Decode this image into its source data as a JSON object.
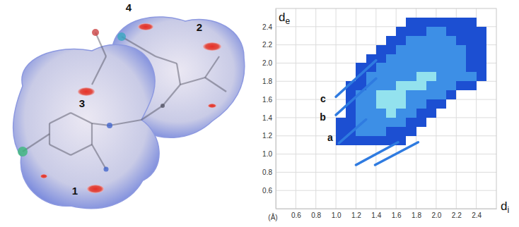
{
  "chart_data": {
    "type": "heatmap",
    "x_label": "di",
    "y_label": "de",
    "xlim": [
      0.4,
      2.6
    ],
    "ylim": [
      0.4,
      2.6
    ],
    "xticks": [
      0.6,
      0.8,
      {
        "value": 1,
        "label": "1.0"
      },
      1.2,
      1.4,
      1.6,
      1.8,
      {
        "value": 2,
        "label": "2.0"
      },
      2.2,
      2.4
    ],
    "yticks": [
      0.6,
      0.8,
      {
        "value": 1,
        "label": "1.0"
      },
      1.2,
      1.4,
      1.6,
      1.8,
      {
        "value": 2,
        "label": "2.0"
      },
      2.2,
      2.4
    ],
    "grid": true,
    "cell_size": 0.1,
    "clim": [
      1,
      3
    ],
    "cells": [
      {
        "y": 2.4,
        "x": [
          1.7,
          1.8,
          1.9,
          2.0,
          2.1,
          2.2,
          2.3
        ],
        "levels": [
          1,
          1,
          1,
          1,
          1,
          1,
          1
        ]
      },
      {
        "y": 2.3,
        "x": [
          1.6,
          1.7,
          1.8,
          1.9,
          2.0,
          2.1,
          2.2,
          2.3,
          2.4
        ],
        "levels": [
          1,
          1,
          1,
          2,
          2,
          1,
          1,
          1,
          1
        ]
      },
      {
        "y": 2.2,
        "x": [
          1.5,
          1.6,
          1.7,
          1.8,
          1.9,
          2.0,
          2.1,
          2.2,
          2.3,
          2.4
        ],
        "levels": [
          1,
          1,
          2,
          2,
          2,
          2,
          2,
          1,
          1,
          1
        ]
      },
      {
        "y": 2.1,
        "x": [
          1.4,
          1.5,
          1.6,
          1.7,
          1.8,
          1.9,
          2.0,
          2.1,
          2.2,
          2.3,
          2.4
        ],
        "levels": [
          1,
          1,
          2,
          2,
          2,
          2,
          2,
          2,
          2,
          1,
          1
        ]
      },
      {
        "y": 2.0,
        "x": [
          1.3,
          1.4,
          1.5,
          1.6,
          1.7,
          1.8,
          1.9,
          2.0,
          2.1,
          2.2,
          2.3,
          2.4
        ],
        "levels": [
          1,
          1,
          2,
          2,
          2,
          2,
          2,
          2,
          2,
          2,
          1,
          1
        ]
      },
      {
        "y": 1.9,
        "x": [
          1.2,
          1.3,
          1.4,
          1.5,
          1.6,
          1.7,
          1.8,
          1.9,
          2.0,
          2.1,
          2.2,
          2.3,
          2.4
        ],
        "levels": [
          1,
          1,
          2,
          2,
          2,
          2,
          2,
          2,
          2,
          2,
          2,
          1,
          1
        ]
      },
      {
        "y": 1.8,
        "x": [
          1.2,
          1.3,
          1.4,
          1.5,
          1.6,
          1.7,
          1.8,
          1.9,
          2.0,
          2.1,
          2.2,
          2.3,
          2.4
        ],
        "levels": [
          1,
          2,
          2,
          2,
          2,
          2,
          3,
          3,
          2,
          2,
          2,
          2,
          1
        ]
      },
      {
        "y": 1.7,
        "x": [
          1.1,
          1.2,
          1.3,
          1.4,
          1.5,
          1.6,
          1.7,
          1.8,
          1.9,
          2.0,
          2.1,
          2.2,
          2.3
        ],
        "levels": [
          1,
          1,
          2,
          2,
          2,
          3,
          3,
          3,
          2,
          2,
          2,
          1,
          1
        ]
      },
      {
        "y": 1.6,
        "x": [
          1.1,
          1.2,
          1.3,
          1.4,
          1.5,
          1.6,
          1.7,
          1.8,
          1.9,
          2.0,
          2.1
        ],
        "levels": [
          1,
          2,
          2,
          3,
          3,
          3,
          2,
          2,
          2,
          2,
          1
        ]
      },
      {
        "y": 1.5,
        "x": [
          1.1,
          1.2,
          1.3,
          1.4,
          1.5,
          1.6,
          1.7,
          1.8,
          1.9,
          2.0
        ],
        "levels": [
          1,
          2,
          2,
          3,
          3,
          3,
          2,
          2,
          1,
          1
        ]
      },
      {
        "y": 1.4,
        "x": [
          1.1,
          1.2,
          1.3,
          1.4,
          1.5,
          1.6,
          1.7,
          1.8,
          1.9
        ],
        "levels": [
          1,
          2,
          2,
          2,
          3,
          2,
          2,
          1,
          1
        ]
      },
      {
        "y": 1.3,
        "x": [
          1.0,
          1.1,
          1.2,
          1.3,
          1.4,
          1.5,
          1.6,
          1.7,
          1.8
        ],
        "levels": [
          1,
          1,
          2,
          2,
          2,
          2,
          2,
          1,
          1
        ]
      },
      {
        "y": 1.2,
        "x": [
          1.0,
          1.1,
          1.2,
          1.3,
          1.4,
          1.5,
          1.6,
          1.7
        ],
        "levels": [
          1,
          1,
          2,
          2,
          2,
          1,
          1,
          1
        ]
      },
      {
        "y": 1.1,
        "x": [
          1.0,
          1.1,
          1.2,
          1.3,
          1.4,
          1.5,
          1.6
        ],
        "levels": [
          1,
          1,
          1,
          1,
          1,
          1,
          1
        ]
      }
    ],
    "series": [
      {
        "type": "line",
        "color": "#2f7be0",
        "x": [
          1.0,
          1.4
        ],
        "values": [
          1.63,
          2.03
        ]
      },
      {
        "type": "line",
        "color": "#2f7be0",
        "x": [
          1.0,
          1.4
        ],
        "values": [
          1.43,
          1.83
        ]
      },
      {
        "type": "line",
        "color": "#2f7be0",
        "x": [
          1.03,
          1.3
        ],
        "values": [
          1.12,
          1.38
        ]
      },
      {
        "type": "line",
        "color": "#2f7be0",
        "x": [
          1.2,
          1.62
        ],
        "values": [
          0.88,
          1.13
        ]
      },
      {
        "type": "line",
        "color": "#2f7be0",
        "x": [
          1.39,
          1.82
        ],
        "values": [
          0.88,
          1.13
        ]
      }
    ],
    "annotations": [
      {
        "text": "c",
        "x": 0.9,
        "y": 1.6
      },
      {
        "text": "b",
        "x": 0.9,
        "y": 1.4
      },
      {
        "text": "a",
        "x": 0.97,
        "y": 1.17
      },
      {
        "text": "(Å)"
      }
    ]
  },
  "diagram": {
    "labels": [
      "1",
      "2",
      "3",
      "4"
    ]
  }
}
